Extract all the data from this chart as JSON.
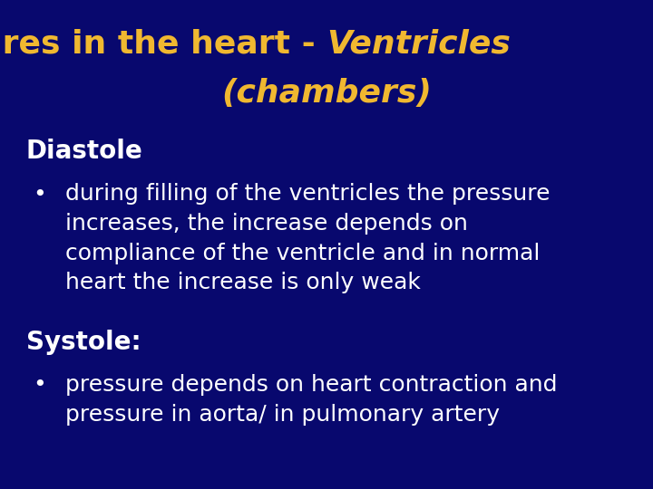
{
  "background_color": "#08086e",
  "title_normal": "Pressures in the heart - ",
  "title_italic": "Ventricles",
  "title_line2": "(chambers)",
  "title_color": "#f0b830",
  "title_fontsize": 26,
  "body_color": "#ffffff",
  "body_fontsize": 18,
  "header_fontsize": 20,
  "diastole_header": "Diastole",
  "diastole_bullet": "during filling of the ventricles the pressure\nincreases, the increase depends on\ncompliance of the ventricle and in normal\nheart the increase is only weak",
  "systole_header": "Systole:",
  "systole_bullet": "pressure depends on heart contraction and\npressure in aorta/ in pulmonary artery"
}
